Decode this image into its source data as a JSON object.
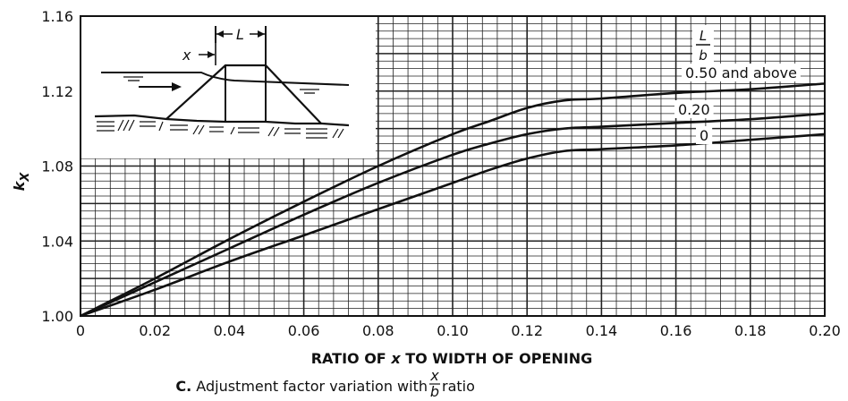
{
  "chart_data": {
    "type": "line",
    "xlabel_prefix": "RATIO OF ",
    "xlabel_var": "x",
    "xlabel_suffix": " TO WIDTH OF OPENING",
    "ylabel_main": "k",
    "ylabel_sub": "X",
    "caption_letter": "C.",
    "caption_text": " Adjustment factor variation with ",
    "caption_frac_num": "x",
    "caption_frac_den": "b",
    "caption_end": " ratio",
    "xlim": [
      0,
      0.2
    ],
    "ylim": [
      1.0,
      1.16
    ],
    "xticks": [
      "0",
      "0.02",
      "0.04",
      "0.06",
      "0.08",
      "0.10",
      "0.12",
      "0.14",
      "0.16",
      "0.18",
      "0.20"
    ],
    "yticks": [
      "1.00",
      "1.04",
      "1.08",
      "1.12",
      "1.16"
    ],
    "grid": true,
    "legend_title_num": "L",
    "legend_title_den": "b",
    "series": [
      {
        "name": "0.50 and above",
        "x": [
          0,
          0.02,
          0.04,
          0.06,
          0.08,
          0.1,
          0.11,
          0.12,
          0.13,
          0.14,
          0.16,
          0.18,
          0.2
        ],
        "y": [
          1.0,
          1.02,
          1.041,
          1.061,
          1.08,
          1.097,
          1.104,
          1.111,
          1.115,
          1.116,
          1.119,
          1.121,
          1.124
        ]
      },
      {
        "name": "0.20",
        "x": [
          0,
          0.02,
          0.04,
          0.06,
          0.08,
          0.1,
          0.11,
          0.12,
          0.13,
          0.14,
          0.16,
          0.18,
          0.2
        ],
        "y": [
          1.0,
          1.018,
          1.036,
          1.054,
          1.071,
          1.086,
          1.092,
          1.097,
          1.1,
          1.101,
          1.103,
          1.105,
          1.108
        ]
      },
      {
        "name": "0",
        "x": [
          0,
          0.02,
          0.04,
          0.06,
          0.08,
          0.1,
          0.11,
          0.12,
          0.13,
          0.14,
          0.16,
          0.18,
          0.2
        ],
        "y": [
          1.0,
          1.014,
          1.029,
          1.043,
          1.057,
          1.071,
          1.078,
          1.084,
          1.088,
          1.089,
          1.091,
          1.094,
          1.097
        ]
      }
    ],
    "inset_labels": {
      "x": "x",
      "L": "L"
    }
  }
}
